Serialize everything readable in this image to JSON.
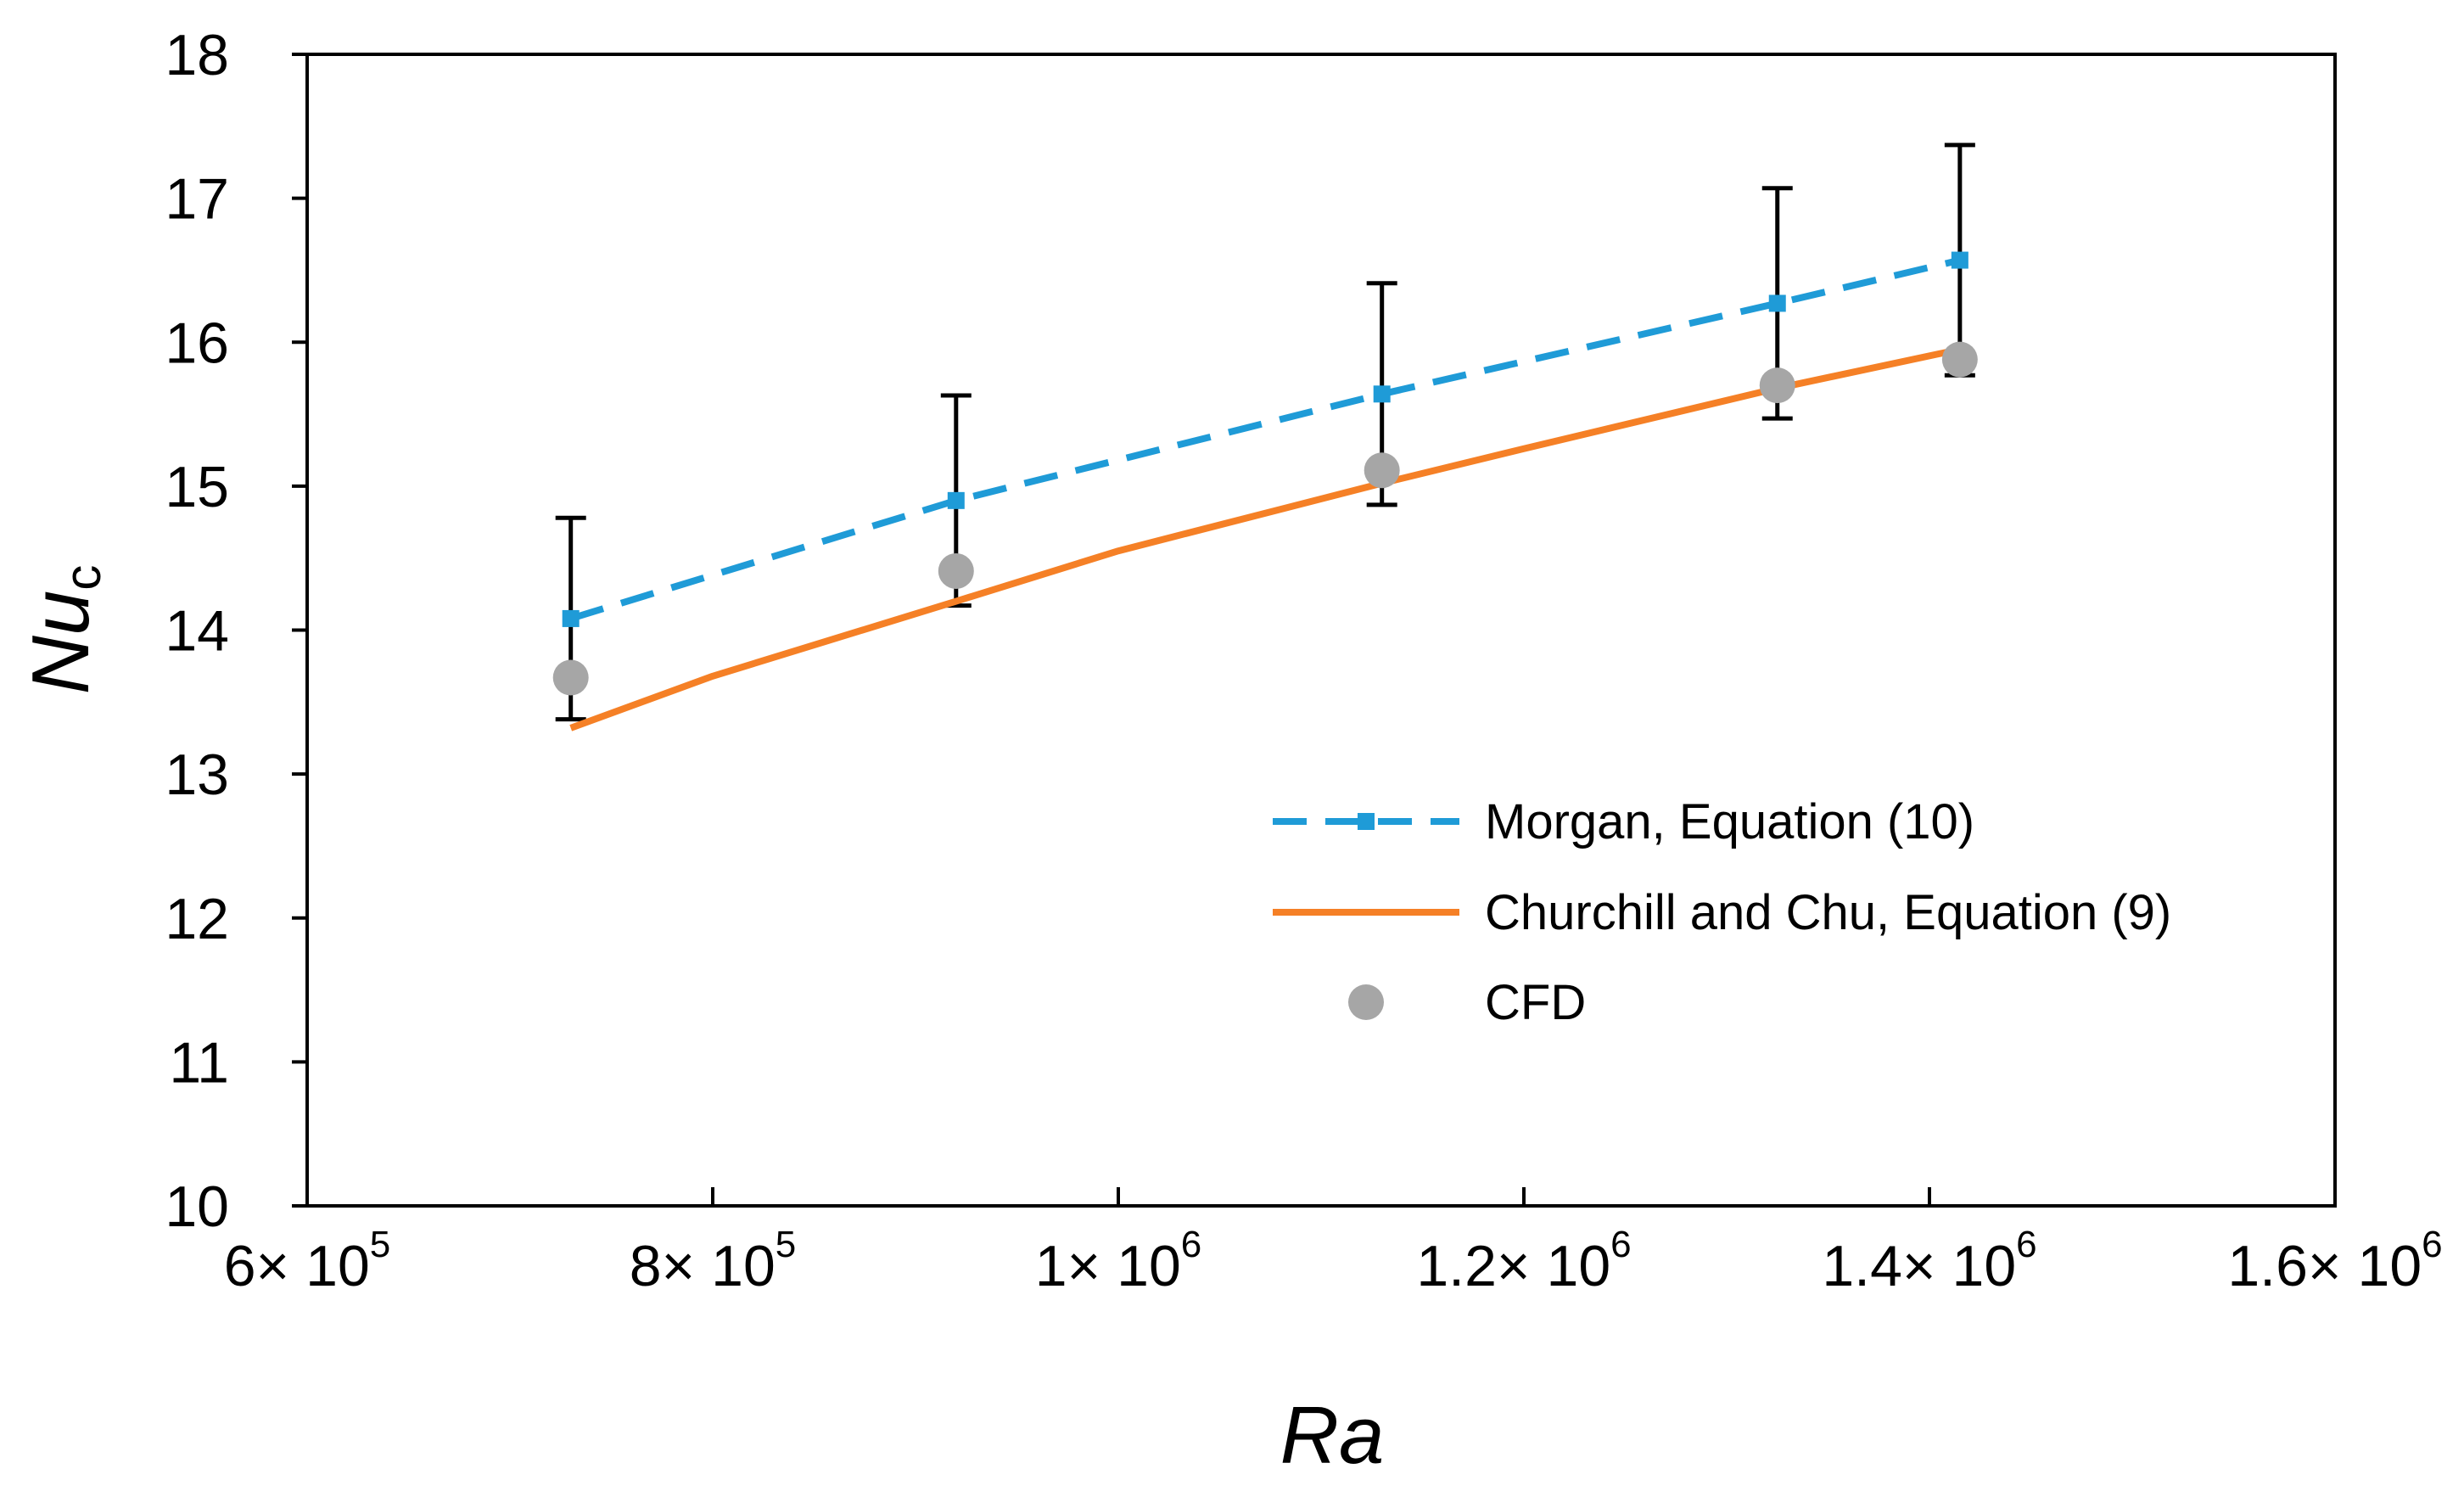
{
  "chart_data": {
    "type": "line",
    "xlabel": "Ra",
    "ylabel": "Nu",
    "ylabel_subscript": "c",
    "xlim": [
      600000,
      1600000
    ],
    "ylim": [
      10,
      18
    ],
    "xticks": [
      600000,
      800000,
      1000000,
      1200000,
      1400000,
      1600000
    ],
    "xtick_labels": [
      {
        "mantissa": "6×",
        "base": "10",
        "exp": "5"
      },
      {
        "mantissa": "8×",
        "base": "10",
        "exp": "5"
      },
      {
        "mantissa": "1×",
        "base": "10",
        "exp": "6"
      },
      {
        "mantissa": "1.2×",
        "base": "10",
        "exp": "6"
      },
      {
        "mantissa": "1.4×",
        "base": "10",
        "exp": "6"
      },
      {
        "mantissa": "1.6×",
        "base": "10",
        "exp": "6"
      }
    ],
    "yticks": [
      10,
      11,
      12,
      13,
      14,
      15,
      16,
      17,
      18
    ],
    "ytick_labels": [
      "10",
      "11",
      "12",
      "13",
      "14",
      "15",
      "16",
      "17",
      "18"
    ],
    "grid": false,
    "legend_position": "bottom-right",
    "series": [
      {
        "name": "Morgan, Equation (10)",
        "style": "dashed-square",
        "color": "#1f9bd7",
        "x": [
          730000,
          920000,
          1130000,
          1325000,
          1415000
        ],
        "y": [
          14.08,
          14.9,
          15.64,
          16.27,
          16.57
        ],
        "error_upper": [
          0.7,
          0.73,
          0.77,
          0.8,
          0.8
        ],
        "error_lower": [
          0.7,
          0.73,
          0.77,
          0.8,
          0.8
        ]
      },
      {
        "name": "Churchill and Chu, Equation (9)",
        "style": "solid",
        "color": "#f58026",
        "x": [
          730000,
          800000,
          920000,
          1000000,
          1130000,
          1200000,
          1325000,
          1415000
        ],
        "y": [
          13.32,
          13.68,
          14.2,
          14.55,
          15.02,
          15.26,
          15.68,
          15.95
        ]
      },
      {
        "name": "CFD",
        "style": "marker",
        "color": "#a6a6a6",
        "x": [
          730000,
          920000,
          1130000,
          1325000,
          1415000
        ],
        "y": [
          13.67,
          14.41,
          15.11,
          15.7,
          15.88
        ]
      }
    ]
  }
}
